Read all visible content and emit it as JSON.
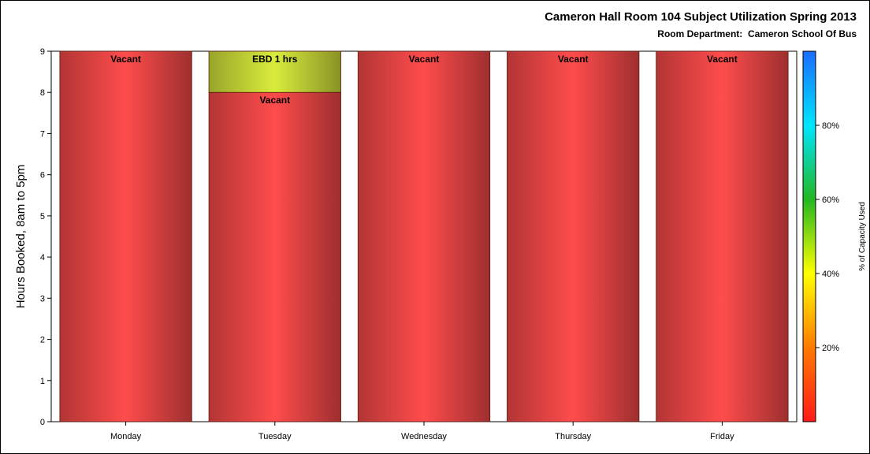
{
  "chart_data": {
    "type": "bar",
    "stacked": true,
    "title": "Cameron Hall Room 104 Subject Utilization Spring 2013",
    "subtitle": "Room Department:  Cameron School Of Bus",
    "ylabel": "Hours Booked, 8am to 5pm",
    "xlabel": "",
    "ylim": [
      0,
      9
    ],
    "yticks": [
      0,
      1,
      2,
      3,
      4,
      5,
      6,
      7,
      8,
      9
    ],
    "categories": [
      "Monday",
      "Tuesday",
      "Wednesday",
      "Thursday",
      "Friday"
    ],
    "bars": [
      {
        "category": "Monday",
        "segments": [
          {
            "label": "Vacant",
            "value": 9,
            "color": "#ff4c4c"
          }
        ]
      },
      {
        "category": "Tuesday",
        "segments": [
          {
            "label": "Vacant",
            "value": 8,
            "color": "#ff4c4c"
          },
          {
            "label": "EBD 1 hrs",
            "value": 1,
            "color": "#d9ec3c"
          }
        ]
      },
      {
        "category": "Wednesday",
        "segments": [
          {
            "label": "Vacant",
            "value": 9,
            "color": "#ff4c4c"
          }
        ]
      },
      {
        "category": "Thursday",
        "segments": [
          {
            "label": "Vacant",
            "value": 9,
            "color": "#ff4c4c"
          }
        ]
      },
      {
        "category": "Friday",
        "segments": [
          {
            "label": "Vacant",
            "value": 9,
            "color": "#ff4c4c"
          }
        ]
      }
    ],
    "colorbar": {
      "label": "% of Capacity Used",
      "ticks": [
        "20%",
        "40%",
        "60%",
        "80%"
      ],
      "tick_values": [
        20,
        40,
        60,
        80
      ],
      "range": [
        0,
        100
      ],
      "stops": [
        "#ff1a1a",
        "#ff7a00",
        "#ffff00",
        "#22b722",
        "#00e5ff",
        "#1a6cff"
      ]
    },
    "grid": false
  }
}
